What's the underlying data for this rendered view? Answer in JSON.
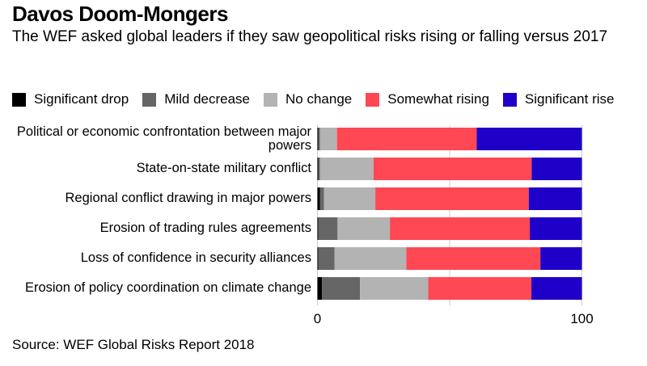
{
  "chart_data": {
    "type": "bar",
    "orientation": "horizontal",
    "stacked": true,
    "title": "Davos Doom-Mongers",
    "subtitle": "The WEF asked global leaders if they saw geopolitical risks rising or falling versus 2017",
    "categories": [
      "Political or economic confrontation between major powers",
      "State-on-state military conflict",
      "Regional conflict drawing in major powers",
      "Erosion of trading rules agreements",
      "Loss of confidence in security alliances",
      "Erosion of policy coordination on climate change"
    ],
    "series": [
      {
        "name": "Significant drop",
        "color": "#000000",
        "values": [
          0.4,
          0.4,
          1.0,
          0.3,
          0.3,
          1.7
        ]
      },
      {
        "name": "Mild decrease",
        "color": "#666666",
        "values": [
          0.6,
          0.6,
          1.5,
          7.3,
          6.2,
          14.4
        ]
      },
      {
        "name": "No change",
        "color": "#b3b3b3",
        "values": [
          6.4,
          20.2,
          19.4,
          19.8,
          27.1,
          25.8
        ]
      },
      {
        "name": "Somewhat rising",
        "color": "#ff4854",
        "values": [
          52.8,
          59.8,
          58.0,
          52.9,
          50.7,
          39.0
        ]
      },
      {
        "name": "Significant rise",
        "color": "#1f00c9",
        "values": [
          39.8,
          19.0,
          20.1,
          19.7,
          15.7,
          19.1
        ]
      }
    ],
    "xlabel": "",
    "ylabel": "",
    "xlim": [
      0,
      100
    ],
    "xticks": [
      0,
      50,
      100
    ],
    "xtick_labels": [
      "0",
      "",
      "100"
    ],
    "grid": true,
    "legend": "top"
  },
  "source": "Source: WEF Global Risks Report 2018"
}
